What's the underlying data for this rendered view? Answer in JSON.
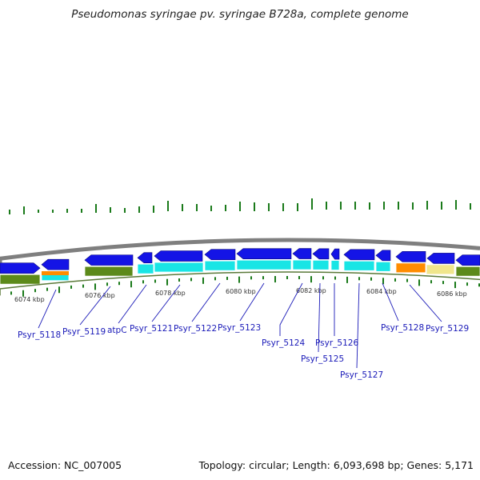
{
  "title": "Pseudomonas syringae pv. syringae B728a, complete genome",
  "footer": {
    "accession": "Accession: NC_007005",
    "stats": "Topology: circular; Length: 6,093,698 bp; Genes: 5,171"
  },
  "colors": {
    "backbone": "#7f7f7f",
    "forward_gene": "#1414e6",
    "reverse_gene": "#1414e6",
    "cds_cyan": "#19e5e5",
    "cds_olive": "#5c8a1a",
    "cds_orange": "#ff8c00",
    "cds_khaki": "#f0e68c",
    "gc_ticks": "#1a7a1a",
    "label": "#1a1ab8"
  },
  "kbp_labels": [
    "6074 kbp",
    "6076 kbp",
    "6078 kbp",
    "6080 kbp",
    "6082 kbp",
    "6084 kbp",
    "6086 kbp"
  ],
  "gene_labels": [
    "Psyr_5118",
    "Psyr_5119",
    "atpC",
    "Psyr_5121",
    "Psyr_5122",
    "Psyr_5123",
    "Psyr_5124",
    "Psyr_5125",
    "Psyr_5126",
    "Psyr_5127",
    "Psyr_5128",
    "Psyr_5129"
  ]
}
